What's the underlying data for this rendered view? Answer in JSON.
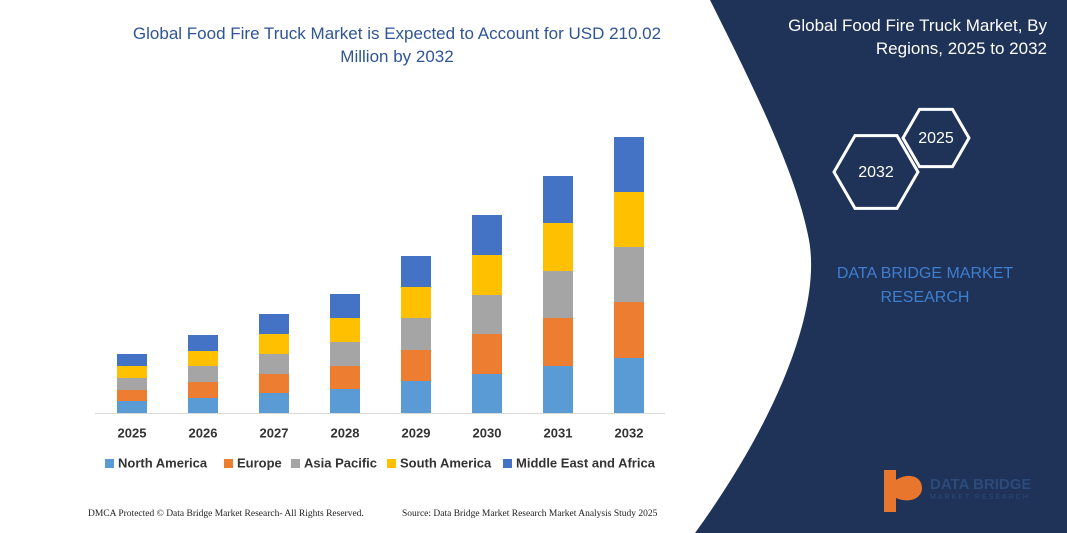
{
  "chart_data": {
    "type": "stacked-bar",
    "title": "Global Food Fire Truck Market is Expected to Account for USD 210.02 Million by 2032",
    "categories": [
      "2025",
      "2026",
      "2027",
      "2028",
      "2029",
      "2030",
      "2031",
      "2032"
    ],
    "series": [
      {
        "name": "North America",
        "color": "#5b9bd5",
        "values": [
          12,
          15,
          20,
          24,
          32,
          39,
          47,
          55
        ]
      },
      {
        "name": "Europe",
        "color": "#ed7d31",
        "values": [
          11,
          16,
          19,
          23,
          31,
          40,
          48,
          56
        ]
      },
      {
        "name": "Asia Pacific",
        "color": "#a5a5a5",
        "values": [
          12,
          16,
          20,
          24,
          32,
          39,
          47,
          55
        ]
      },
      {
        "name": "South America",
        "color": "#ffc000",
        "values": [
          12,
          15,
          20,
          24,
          31,
          40,
          48,
          55
        ]
      },
      {
        "name": "Middle East and Africa",
        "color": "#4472c4",
        "values": [
          12,
          16,
          20,
          24,
          31,
          40,
          47,
          55
        ]
      }
    ]
  },
  "panel": {
    "title": "Global Food Fire Truck Market, By Regions, 2025 to 2032",
    "hexagons": [
      "2025",
      "2032"
    ],
    "brand": "DATA BRIDGE MARKET RESEARCH"
  },
  "logo": {
    "name": "DATA BRIDGE",
    "tagline": "MARKET RESEARCH"
  },
  "footer": {
    "left": "DMCA Protected © Data Bridge Market Research-  All Rights Reserved.",
    "right": "Source: Data Bridge Market Research  Market Analysis Study 2025"
  }
}
